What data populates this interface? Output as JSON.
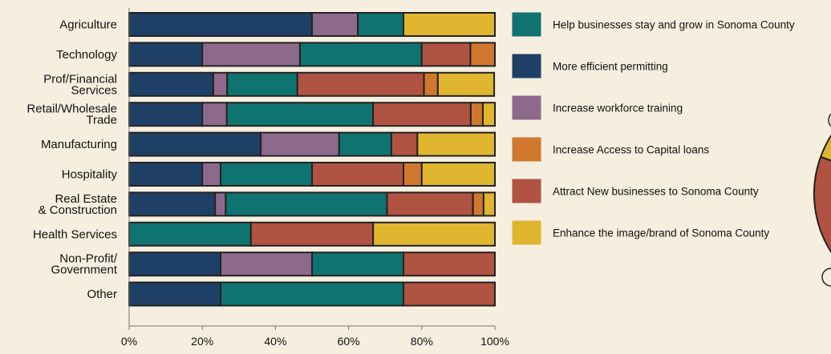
{
  "chart_data": {
    "type": "bar",
    "orientation": "horizontal",
    "stacked": true,
    "percent": true,
    "categories": [
      "Agriculture",
      "Technology",
      "Prof/Financial Services",
      "Retail/Wholesale Trade",
      "Manufacturing",
      "Hospitality",
      "Real Estate & Construction",
      "Health Services",
      "Non-Profit/ Government",
      "Other"
    ],
    "category_label_lines": [
      [
        "Agriculture"
      ],
      [
        "Technology"
      ],
      [
        "Prof/Financial",
        "Services"
      ],
      [
        "Retail/Wholesale",
        "Trade"
      ],
      [
        "Manufacturing"
      ],
      [
        "Hospitality"
      ],
      [
        "Real Estate",
        "& Construction"
      ],
      [
        "Health Services"
      ],
      [
        "Non-Profit/",
        "Government"
      ],
      [
        "Other"
      ]
    ],
    "series": [
      {
        "name": "More efficient permitting",
        "color": "#1f4066",
        "values": [
          50,
          20,
          23,
          20,
          36,
          20,
          23.5,
          0,
          25,
          25
        ]
      },
      {
        "name": "Increase workforce training",
        "color": "#8d6a8c",
        "values": [
          12.5,
          26.7,
          3.8,
          6.7,
          21.4,
          5,
          2.9,
          0,
          25,
          0
        ]
      },
      {
        "name": "Help businesses stay and grow in Sonoma County",
        "color": "#0f7370",
        "values": [
          12.5,
          33.3,
          19.2,
          40,
          14.3,
          25,
          44.1,
          33.3,
          25,
          50
        ]
      },
      {
        "name": "Attract New businesses to Sonoma County",
        "color": "#b15342",
        "values": [
          0,
          13.3,
          34.6,
          26.7,
          7.1,
          25,
          23.5,
          33.4,
          25,
          25
        ]
      },
      {
        "name": "Increase Access to Capital loans",
        "color": "#d0782e",
        "values": [
          0,
          6.7,
          3.8,
          3.3,
          0,
          5,
          2.9,
          0,
          0,
          0
        ]
      },
      {
        "name": "Enhance the image/brand of Sonoma County",
        "color": "#e0b52f",
        "values": [
          25,
          0,
          15.4,
          3.3,
          21.2,
          20,
          3.1,
          33.3,
          0,
          0
        ]
      }
    ],
    "x_ticks": [
      "0%",
      "20%",
      "40%",
      "60%",
      "80%",
      "100%"
    ],
    "xlim": [
      0,
      100
    ],
    "grid": false,
    "legend": {
      "placement": "right",
      "entries": [
        {
          "label": "Help businesses stay and grow in Sonoma County",
          "color": "#0f7370"
        },
        {
          "label": "More efficient permitting",
          "color": "#1f4066"
        },
        {
          "label": "Increase workforce training",
          "color": "#8d6a8c"
        },
        {
          "label": "Increase Access to Capital loans",
          "color": "#d0782e"
        },
        {
          "label": "Attract New businesses to Sonoma County",
          "color": "#b15342"
        },
        {
          "label": "Enhance the image/brand of Sonoma County",
          "color": "#e0b52f"
        }
      ]
    },
    "title": "",
    "xlabel": "",
    "ylabel": ""
  },
  "colors": {
    "background": "#f6eedf",
    "bar_outline": "#222222"
  }
}
